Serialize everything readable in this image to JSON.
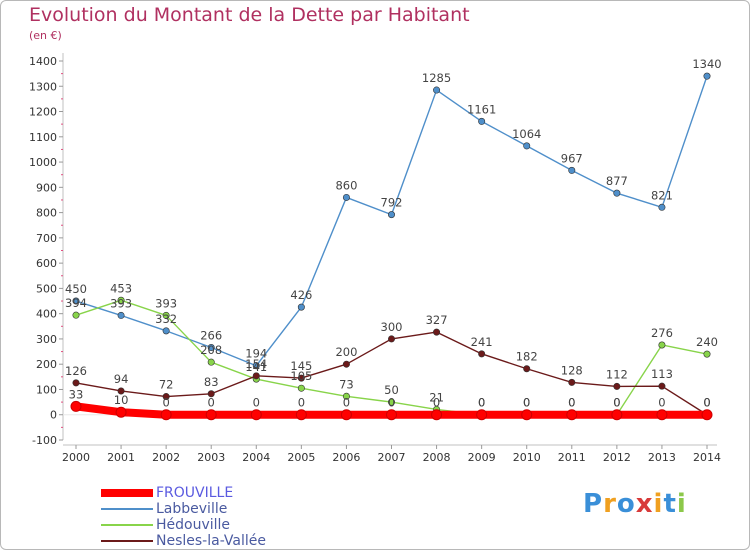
{
  "chart_data": {
    "type": "line",
    "title": "Evolution du Montant de la Dette par Habitant",
    "subtitle": "(en €)",
    "x": [
      "2000",
      "2001",
      "2002",
      "2003",
      "2004",
      "2005",
      "2006",
      "2007",
      "2008",
      "2009",
      "2010",
      "2011",
      "2012",
      "2013",
      "2014"
    ],
    "ylim": [
      -100,
      1400
    ],
    "yticks": [
      -100,
      0,
      100,
      200,
      300,
      400,
      500,
      600,
      700,
      800,
      900,
      1000,
      1100,
      1200,
      1300,
      1400
    ],
    "grid": false,
    "legend_position": "bottom-left",
    "series": [
      {
        "name": "FROUVILLE",
        "color": "#ff0000",
        "values": [
          33,
          10,
          0,
          0,
          0,
          0,
          0,
          0,
          0,
          0,
          0,
          0,
          0,
          0,
          0
        ]
      },
      {
        "name": "Labbeville",
        "color": "#4f8fca",
        "values": [
          450,
          393,
          332,
          266,
          194,
          426,
          860,
          792,
          1285,
          1161,
          1064,
          967,
          877,
          821,
          1340
        ]
      },
      {
        "name": "Hédouville",
        "color": "#88d44a",
        "values": [
          394,
          453,
          393,
          208,
          141,
          105,
          73,
          50,
          21,
          0,
          0,
          0,
          0,
          276,
          240
        ]
      },
      {
        "name": "Nesles-la-Vallée",
        "color": "#6b1a1a",
        "values": [
          126,
          94,
          72,
          83,
          154,
          145,
          200,
          300,
          327,
          241,
          182,
          128,
          112,
          113,
          0
        ]
      }
    ]
  },
  "logo": {
    "letters": [
      "P",
      "r",
      "o",
      "x",
      "i",
      "t",
      "i"
    ],
    "colors": [
      "#3a8fd8",
      "#f0a020",
      "#3a8fd8",
      "#d83a3a",
      "#f0a020",
      "#3a8fd8",
      "#8cc84a"
    ]
  }
}
